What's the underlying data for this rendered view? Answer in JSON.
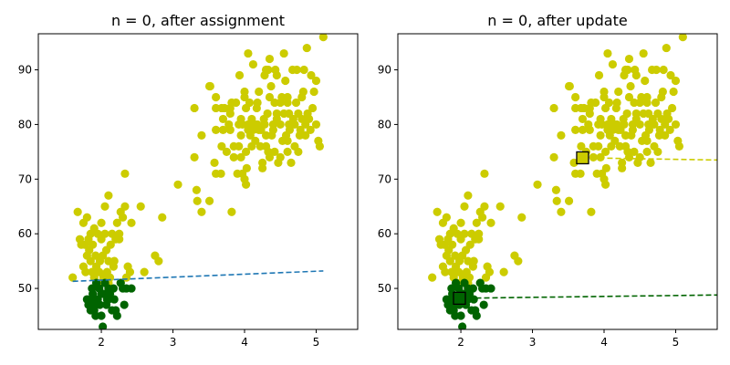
{
  "chart_data": [
    {
      "type": "scatter",
      "title": "n = 0, after assignment",
      "xlabel": "",
      "ylabel": "",
      "xlim": [
        1.12,
        5.58
      ],
      "ylim": [
        42.5,
        96.6
      ],
      "xticks": [
        2,
        3,
        4,
        5
      ],
      "yticks": [
        50,
        60,
        70,
        80,
        90
      ],
      "grid": false,
      "clusters": [
        {
          "color": "#cccc00"
        },
        {
          "color": "#006400"
        }
      ],
      "lines": [
        {
          "color": "#1f77b4",
          "style": "dashed",
          "x": [
            1.6,
            5.1
          ],
          "y": [
            51.3,
            53.2
          ]
        }
      ],
      "centroids": []
    },
    {
      "type": "scatter",
      "title": "n = 0, after update",
      "xlabel": "",
      "ylabel": "",
      "xlim": [
        1.12,
        5.58
      ],
      "ylim": [
        42.5,
        96.6
      ],
      "xticks": [
        2,
        3,
        4,
        5
      ],
      "yticks": [
        50,
        60,
        70,
        80,
        90
      ],
      "grid": false,
      "clusters": [
        {
          "color": "#cccc00"
        },
        {
          "color": "#006400"
        }
      ],
      "lines": [
        {
          "color": "#cccc00",
          "style": "dashed",
          "x": [
            3.7,
            5.58
          ],
          "y": [
            73.9,
            73.5
          ]
        },
        {
          "color": "#006400",
          "style": "dashed",
          "x": [
            1.98,
            5.58
          ],
          "y": [
            48.2,
            48.8
          ]
        }
      ],
      "centroids": [
        {
          "x": 3.7,
          "y": 73.9,
          "color": "#cccc00"
        },
        {
          "x": 1.98,
          "y": 48.2,
          "color": "#006400"
        }
      ]
    }
  ],
  "points": {
    "yellow": [
      [
        3.6,
        79
      ],
      [
        3.6,
        85
      ],
      [
        3.6,
        83
      ],
      [
        3.6,
        71
      ],
      [
        3.58,
        73
      ],
      [
        3.52,
        87
      ],
      [
        3.51,
        87
      ],
      [
        3.51,
        66
      ],
      [
        3.4,
        78
      ],
      [
        3.4,
        64
      ],
      [
        3.34,
        66
      ],
      [
        3.33,
        68
      ],
      [
        3.3,
        74
      ],
      [
        3.3,
        83
      ],
      [
        3.07,
        69
      ],
      [
        3.68,
        83
      ],
      [
        3.7,
        81
      ],
      [
        3.72,
        83
      ],
      [
        3.7,
        79
      ],
      [
        3.67,
        71
      ],
      [
        3.68,
        76
      ],
      [
        3.75,
        75
      ],
      [
        3.78,
        80
      ],
      [
        3.8,
        83
      ],
      [
        3.8,
        79
      ],
      [
        3.8,
        82
      ],
      [
        3.82,
        84
      ],
      [
        3.82,
        64
      ],
      [
        3.85,
        76
      ],
      [
        3.85,
        74
      ],
      [
        3.88,
        84
      ],
      [
        3.9,
        71
      ],
      [
        3.92,
        76
      ],
      [
        3.92,
        80
      ],
      [
        3.93,
        89
      ],
      [
        3.95,
        81
      ],
      [
        3.95,
        78
      ],
      [
        3.97,
        80
      ],
      [
        3.97,
        71
      ],
      [
        4.0,
        70
      ],
      [
        4.0,
        85
      ],
      [
        4.0,
        86
      ],
      [
        4.02,
        83
      ],
      [
        4.02,
        69
      ],
      [
        4.02,
        75
      ],
      [
        4.03,
        72
      ],
      [
        4.05,
        79
      ],
      [
        4.05,
        80
      ],
      [
        4.05,
        93
      ],
      [
        4.07,
        84
      ],
      [
        4.08,
        78
      ],
      [
        4.1,
        81
      ],
      [
        4.1,
        76
      ],
      [
        4.12,
        79
      ],
      [
        4.12,
        91
      ],
      [
        4.15,
        80
      ],
      [
        4.15,
        77
      ],
      [
        4.17,
        83
      ],
      [
        4.18,
        80
      ],
      [
        4.2,
        79
      ],
      [
        4.2,
        86
      ],
      [
        4.22,
        76
      ],
      [
        4.23,
        79
      ],
      [
        4.25,
        72
      ],
      [
        4.25,
        73
      ],
      [
        4.27,
        81
      ],
      [
        4.28,
        80
      ],
      [
        4.28,
        89
      ],
      [
        4.3,
        76
      ],
      [
        4.3,
        90
      ],
      [
        4.3,
        78
      ],
      [
        4.32,
        82
      ],
      [
        4.33,
        75
      ],
      [
        4.35,
        85
      ],
      [
        4.35,
        92
      ],
      [
        4.37,
        87
      ],
      [
        4.38,
        78
      ],
      [
        4.4,
        80
      ],
      [
        4.4,
        79
      ],
      [
        4.42,
        75
      ],
      [
        4.42,
        84
      ],
      [
        4.43,
        90
      ],
      [
        4.45,
        82
      ],
      [
        4.45,
        81
      ],
      [
        4.47,
        73
      ],
      [
        4.5,
        74
      ],
      [
        4.5,
        84
      ],
      [
        4.5,
        80
      ],
      [
        4.52,
        85
      ],
      [
        4.53,
        77
      ],
      [
        4.55,
        82
      ],
      [
        4.55,
        93
      ],
      [
        4.57,
        88
      ],
      [
        4.58,
        78
      ],
      [
        4.6,
        84
      ],
      [
        4.6,
        85
      ],
      [
        4.6,
        75
      ],
      [
        4.62,
        80
      ],
      [
        4.62,
        82
      ],
      [
        4.63,
        79
      ],
      [
        4.65,
        73
      ],
      [
        4.67,
        90
      ],
      [
        4.68,
        81
      ],
      [
        4.7,
        76
      ],
      [
        4.7,
        80
      ],
      [
        4.72,
        84
      ],
      [
        4.73,
        90
      ],
      [
        4.75,
        75
      ],
      [
        4.75,
        82
      ],
      [
        4.77,
        78
      ],
      [
        4.78,
        79
      ],
      [
        4.8,
        81
      ],
      [
        4.8,
        85
      ],
      [
        4.82,
        86
      ],
      [
        4.83,
        90
      ],
      [
        4.85,
        80
      ],
      [
        4.87,
        94
      ],
      [
        4.88,
        82
      ],
      [
        4.9,
        81
      ],
      [
        4.92,
        79
      ],
      [
        4.93,
        89
      ],
      [
        4.95,
        83
      ],
      [
        4.97,
        86
      ],
      [
        5.0,
        80
      ],
      [
        5.0,
        88
      ],
      [
        5.03,
        77
      ],
      [
        5.05,
        76
      ],
      [
        5.1,
        96
      ],
      [
        4.33,
        90
      ],
      [
        4.45,
        89
      ],
      [
        4.18,
        84
      ],
      [
        3.95,
        74
      ],
      [
        4.85,
        78
      ],
      [
        4.35,
        74
      ],
      [
        4.6,
        77
      ],
      [
        1.6,
        52
      ],
      [
        1.67,
        64
      ],
      [
        1.7,
        59
      ],
      [
        1.72,
        58
      ],
      [
        1.75,
        62
      ],
      [
        1.75,
        54
      ],
      [
        1.77,
        58
      ],
      [
        1.78,
        53
      ],
      [
        1.8,
        56
      ],
      [
        1.8,
        63
      ],
      [
        1.82,
        59
      ],
      [
        1.83,
        57
      ],
      [
        1.85,
        55
      ],
      [
        1.85,
        60
      ],
      [
        1.87,
        53
      ],
      [
        1.88,
        58
      ],
      [
        1.9,
        52
      ],
      [
        1.9,
        61
      ],
      [
        1.92,
        56
      ],
      [
        1.93,
        54
      ],
      [
        1.95,
        60
      ],
      [
        1.97,
        53
      ],
      [
        1.98,
        55
      ],
      [
        2.0,
        62
      ],
      [
        2.0,
        59
      ],
      [
        2.02,
        56
      ],
      [
        2.03,
        52
      ],
      [
        2.05,
        60
      ],
      [
        2.05,
        65
      ],
      [
        2.07,
        57
      ],
      [
        2.08,
        53
      ],
      [
        2.1,
        55
      ],
      [
        2.1,
        67
      ],
      [
        2.12,
        52
      ],
      [
        2.13,
        58
      ],
      [
        2.15,
        60
      ],
      [
        2.17,
        54
      ],
      [
        2.18,
        55
      ],
      [
        2.2,
        59
      ],
      [
        2.22,
        62
      ],
      [
        2.25,
        60
      ],
      [
        2.27,
        64
      ],
      [
        2.3,
        63
      ],
      [
        2.33,
        65
      ],
      [
        2.33,
        71
      ],
      [
        2.35,
        52
      ],
      [
        2.37,
        54
      ],
      [
        2.4,
        53
      ],
      [
        2.42,
        62
      ],
      [
        2.55,
        65
      ],
      [
        2.6,
        53
      ],
      [
        2.75,
        56
      ],
      [
        2.8,
        55
      ],
      [
        2.85,
        63
      ],
      [
        2.25,
        59
      ],
      [
        1.95,
        51
      ],
      [
        2.1,
        51
      ],
      [
        2.27,
        51
      ]
    ],
    "green": [
      [
        1.8,
        48
      ],
      [
        1.82,
        47
      ],
      [
        1.85,
        46
      ],
      [
        1.87,
        50
      ],
      [
        1.88,
        49
      ],
      [
        1.9,
        46
      ],
      [
        1.92,
        45
      ],
      [
        1.93,
        51
      ],
      [
        1.95,
        48
      ],
      [
        1.97,
        50
      ],
      [
        1.98,
        47
      ],
      [
        2.0,
        45
      ],
      [
        2.02,
        43
      ],
      [
        2.03,
        49
      ],
      [
        2.05,
        51
      ],
      [
        2.07,
        47
      ],
      [
        2.08,
        48
      ],
      [
        2.1,
        50
      ],
      [
        2.12,
        49
      ],
      [
        2.15,
        46
      ],
      [
        2.17,
        50
      ],
      [
        2.18,
        48
      ],
      [
        2.2,
        46
      ],
      [
        2.22,
        45
      ],
      [
        2.27,
        51
      ],
      [
        2.3,
        50
      ],
      [
        2.32,
        47
      ],
      [
        2.35,
        50
      ],
      [
        2.42,
        50
      ],
      [
        1.9,
        47
      ],
      [
        2.0,
        49
      ],
      [
        2.1,
        48
      ],
      [
        1.85,
        48
      ]
    ]
  }
}
